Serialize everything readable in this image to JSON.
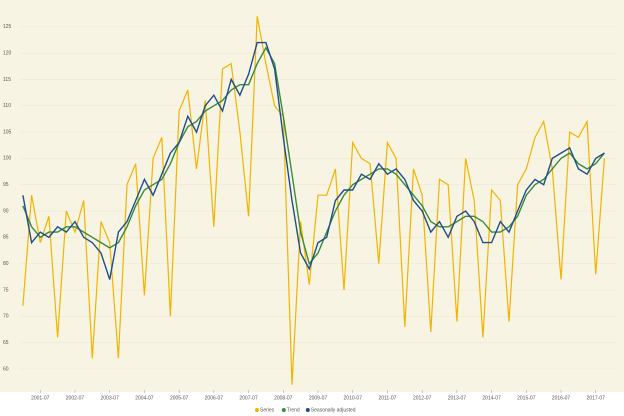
{
  "chart_data": {
    "type": "line",
    "x": [
      "2001-01",
      "2001-04",
      "2001-07",
      "2001-10",
      "2002-01",
      "2002-04",
      "2002-07",
      "2002-10",
      "2003-01",
      "2003-04",
      "2003-07",
      "2003-10",
      "2004-01",
      "2004-04",
      "2004-07",
      "2004-10",
      "2005-01",
      "2005-04",
      "2005-07",
      "2005-10",
      "2006-01",
      "2006-04",
      "2006-07",
      "2006-10",
      "2007-01",
      "2007-04",
      "2007-07",
      "2007-10",
      "2008-01",
      "2008-04",
      "2008-07",
      "2008-10",
      "2009-01",
      "2009-04",
      "2009-07",
      "2009-10",
      "2010-01",
      "2010-04",
      "2010-07",
      "2010-10",
      "2011-01",
      "2011-04",
      "2011-07",
      "2011-10",
      "2012-01",
      "2012-04",
      "2012-07",
      "2012-10",
      "2013-01",
      "2013-04",
      "2013-07",
      "2013-10",
      "2014-01",
      "2014-04",
      "2014-07",
      "2014-10",
      "2015-01",
      "2015-04",
      "2015-07",
      "2015-10",
      "2016-01",
      "2016-04",
      "2016-07",
      "2016-10",
      "2017-01",
      "2017-04",
      "2017-07",
      "2017-10"
    ],
    "series": [
      {
        "name": "Series",
        "color": "#f0b400",
        "values": [
          72,
          93,
          84,
          89,
          66,
          90,
          86,
          92,
          62,
          88,
          84,
          62,
          95,
          99,
          74,
          100,
          104,
          70,
          109,
          113,
          98,
          111,
          87,
          117,
          118,
          105,
          89,
          127,
          118,
          110,
          108,
          57,
          88,
          76,
          93,
          93,
          98,
          75,
          103,
          100,
          99,
          80,
          103,
          100,
          68,
          98,
          93,
          67,
          96,
          95,
          69,
          100,
          92,
          66,
          94,
          92,
          69,
          95,
          98,
          104,
          107,
          98,
          77,
          105,
          104,
          107,
          78,
          100
        ]
      },
      {
        "name": "Trend",
        "color": "#3a8a3a",
        "values": [
          91,
          87,
          85,
          86,
          86,
          87,
          87,
          86,
          85,
          84,
          83,
          84,
          87,
          91,
          94,
          95,
          96,
          99,
          103,
          106,
          107,
          109,
          110,
          111,
          113,
          114,
          114,
          118,
          121,
          118,
          108,
          97,
          86,
          80,
          82,
          86,
          90,
          93,
          95,
          96,
          97,
          98,
          98,
          97,
          95,
          93,
          91,
          88,
          87,
          87,
          88,
          89,
          89,
          88,
          86,
          86,
          87,
          89,
          93,
          95,
          96,
          98,
          100,
          101,
          99,
          98,
          99,
          101
        ]
      },
      {
        "name": "Seasonally adjusted",
        "color": "#1f4e8c",
        "values": [
          93,
          84,
          86,
          85,
          87,
          86,
          88,
          85,
          84,
          82,
          77,
          86,
          88,
          92,
          96,
          93,
          97,
          101,
          103,
          108,
          105,
          110,
          112,
          109,
          115,
          112,
          116,
          122,
          122,
          117,
          104,
          92,
          82,
          79,
          84,
          85,
          92,
          94,
          94,
          97,
          96,
          99,
          97,
          98,
          96,
          92,
          90,
          86,
          88,
          85,
          89,
          90,
          88,
          84,
          84,
          88,
          86,
          90,
          94,
          96,
          95,
          100,
          101,
          102,
          98,
          97,
          100,
          101
        ]
      }
    ],
    "xlim": [
      "2000-12",
      "2018-02"
    ],
    "xticks": [
      "2001-07",
      "2002-07",
      "2003-07",
      "2004-07",
      "2005-07",
      "2006-07",
      "2007-07",
      "2008-07",
      "2009-07",
      "2010-07",
      "2011-07",
      "2012-07",
      "2013-07",
      "2014-07",
      "2015-07",
      "2016-07",
      "2017-07"
    ],
    "ylim": [
      56,
      128
    ],
    "yticks": [
      60,
      65,
      70,
      75,
      80,
      85,
      90,
      95,
      100,
      105,
      110,
      115,
      120,
      125
    ],
    "grid": true,
    "legend": "bottom"
  }
}
